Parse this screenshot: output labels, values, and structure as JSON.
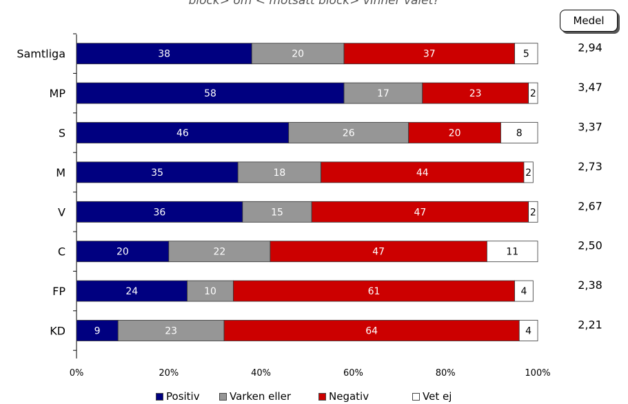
{
  "subtitle": "block> om < motsatt block> vinner valet?",
  "medel_label": "Medel",
  "legend": [
    {
      "name": "Positiv",
      "color": "#000080"
    },
    {
      "name": "Varken eller",
      "color": "#969696"
    },
    {
      "name": "Negativ",
      "color": "#cc0000"
    },
    {
      "name": "Vet ej",
      "color": "#ffffff"
    }
  ],
  "chart_data": {
    "type": "bar",
    "orientation": "horizontal",
    "stacked": "percent",
    "categories": [
      "Samtliga",
      "MP",
      "S",
      "M",
      "V",
      "C",
      "FP",
      "KD"
    ],
    "series": [
      {
        "name": "Positiv",
        "color": "#000080",
        "values": [
          38,
          58,
          46,
          35,
          36,
          20,
          24,
          9
        ]
      },
      {
        "name": "Varken eller",
        "color": "#969696",
        "values": [
          20,
          17,
          26,
          18,
          15,
          22,
          10,
          23
        ]
      },
      {
        "name": "Negativ",
        "color": "#cc0000",
        "values": [
          37,
          23,
          20,
          44,
          47,
          47,
          61,
          64
        ]
      },
      {
        "name": "Vet ej",
        "color": "#ffffff",
        "values": [
          5,
          2,
          8,
          2,
          2,
          11,
          4,
          4
        ]
      }
    ],
    "medel": [
      "2,94",
      "3,47",
      "3,37",
      "2,73",
      "2,67",
      "2,50",
      "2,38",
      "2,21"
    ],
    "xticks": [
      "0%",
      "20%",
      "40%",
      "60%",
      "80%",
      "100%"
    ],
    "xlim": [
      0,
      100
    ],
    "legend_position": "bottom",
    "grid": false
  }
}
